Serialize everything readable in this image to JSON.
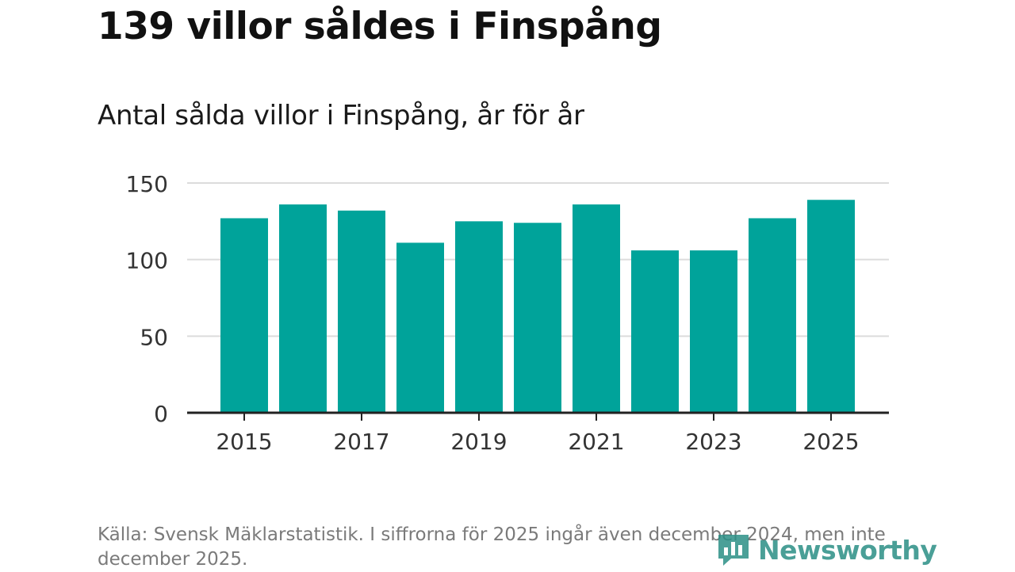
{
  "headline": "139 villor såldes i Finspång",
  "chart_data": {
    "type": "bar",
    "title": "Antal sålda villor i Finspång, år för år",
    "xlabel": "",
    "ylabel": "",
    "categories": [
      "2015",
      "2016",
      "2017",
      "2018",
      "2019",
      "2020",
      "2021",
      "2022",
      "2023",
      "2024",
      "2025"
    ],
    "values": [
      127,
      136,
      132,
      111,
      125,
      124,
      136,
      106,
      106,
      127,
      139
    ],
    "x_tick_labels": [
      "2015",
      "2017",
      "2019",
      "2021",
      "2023",
      "2025"
    ],
    "y_tick_labels": [
      "0",
      "50",
      "100",
      "150"
    ],
    "ylim": [
      0,
      150
    ],
    "grid": true,
    "bar_color": "#00a39a"
  },
  "source": "Källa: Svensk Mäklarstatistik. I siffrorna för 2025 ingår även december 2024, men inte december 2025.",
  "brand": {
    "name": "Newsworthy",
    "icon": "newsworthy-logo-icon",
    "color": "#2b8f86"
  }
}
